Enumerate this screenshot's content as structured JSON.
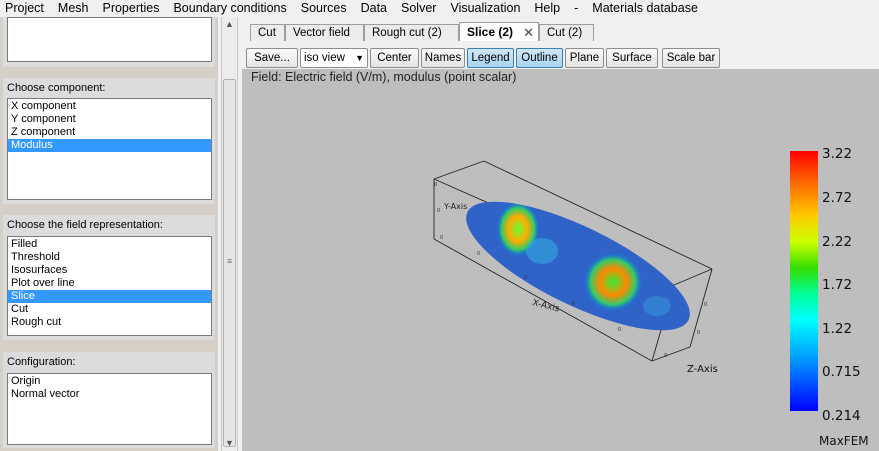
{
  "menu": [
    "Project",
    "Mesh",
    "Properties",
    "Boundary conditions",
    "Sources",
    "Data",
    "Solver",
    "Visualization",
    "Help",
    "-",
    "Materials database"
  ],
  "left": {
    "component_title": "Choose component:",
    "components": [
      "X component",
      "Y component",
      "Z component",
      "Modulus"
    ],
    "component_selected": "Modulus",
    "representation_title": "Choose the field representation:",
    "representations": [
      "Filled",
      "Threshold",
      "Isosurfaces",
      "Plot over line",
      "Slice",
      "Cut",
      "Rough cut"
    ],
    "representation_selected": "Slice",
    "config_title": "Configuration:",
    "config_items": [
      "Origin",
      "Normal vector"
    ]
  },
  "tabs": [
    {
      "label": "Cut",
      "active": false
    },
    {
      "label": "Vector field",
      "active": false
    },
    {
      "label": "Rough cut (2)",
      "active": false
    },
    {
      "label": "Slice (2)",
      "active": true,
      "close": "✕"
    },
    {
      "label": "Cut (2)",
      "active": false
    }
  ],
  "toolbar": {
    "save_label": "Save...",
    "view_select": "iso view",
    "center_label": "Center",
    "names_label": "Names",
    "legend_label": "Legend",
    "outline_label": "Outline",
    "plane_label": "Plane",
    "surface_label": "Surface",
    "scalebar_label": "Scale bar",
    "legend_pressed": true,
    "outline_pressed": true
  },
  "viewport": {
    "field_title": "Field: Electric field (V/m), modulus (point scalar)",
    "x_axis_label": "X-Axis",
    "z_axis_label": "Z-Axis",
    "colorbar_labels": [
      "3.22",
      "2.72",
      "2.22",
      "1.72",
      "1.22",
      "0.715",
      "0.214"
    ],
    "brand": "MaxFEM"
  },
  "colors": {
    "selection": "#3399ff",
    "button_pressed": "#a9d5f1",
    "viewport_bg": "#bebebe"
  }
}
